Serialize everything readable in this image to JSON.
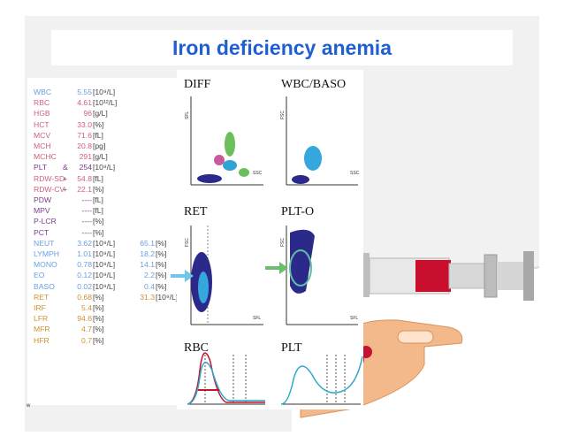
{
  "slide": {
    "title": "Iron deficiency anemia",
    "footer_mark": "w",
    "colors": {
      "title": "#1f5fd0",
      "red_param": "#d06080",
      "purple_param": "#7a3a8a",
      "blue_param": "#6aa0e0",
      "arrow_blue": "#6ec6ea",
      "arrow_green": "#6bbf6b"
    }
  },
  "lab_results": [
    {
      "name": "WBC",
      "value": "5.55",
      "flag": "",
      "unit": "[10⁹/L]",
      "pct": "",
      "unit2": "",
      "color": "#6aa0e0"
    },
    {
      "name": "RBC",
      "value": "4.61",
      "flag": "",
      "unit": "[10¹²/L]",
      "pct": "",
      "unit2": "",
      "color": "#d06080"
    },
    {
      "name": "HGB",
      "value": "96",
      "flag": "",
      "unit": "[g/L]",
      "pct": "",
      "unit2": "",
      "color": "#d06080"
    },
    {
      "name": "HCT",
      "value": "33.0",
      "flag": "",
      "unit": "[%]",
      "pct": "",
      "unit2": "",
      "color": "#d06080"
    },
    {
      "name": "MCV",
      "value": "71.6",
      "flag": "",
      "unit": "[fL]",
      "pct": "",
      "unit2": "",
      "color": "#d06080"
    },
    {
      "name": "MCH",
      "value": "20.8",
      "flag": "",
      "unit": "[pg]",
      "pct": "",
      "unit2": "",
      "color": "#d06080"
    },
    {
      "name": "MCHC",
      "value": "291",
      "flag": "",
      "unit": "[g/L]",
      "pct": "",
      "unit2": "",
      "color": "#d06080"
    },
    {
      "name": "PLT",
      "value": "254",
      "flag": "&",
      "unit": "[10⁹/L]",
      "pct": "",
      "unit2": "",
      "color": "#7a3a8a"
    },
    {
      "name": "RDW-SD",
      "value": "54.8",
      "flag": "+",
      "unit": "[fL]",
      "pct": "",
      "unit2": "",
      "color": "#d06080"
    },
    {
      "name": "RDW-CV",
      "value": "22.1",
      "flag": "+",
      "unit": "[%]",
      "pct": "",
      "unit2": "",
      "color": "#d06080"
    },
    {
      "name": "PDW",
      "value": "----",
      "flag": "",
      "unit": "[fL]",
      "pct": "",
      "unit2": "",
      "color": "#7a3a8a"
    },
    {
      "name": "MPV",
      "value": "----",
      "flag": "",
      "unit": "[fL]",
      "pct": "",
      "unit2": "",
      "color": "#7a3a8a"
    },
    {
      "name": "P-LCR",
      "value": "----",
      "flag": "",
      "unit": "[%]",
      "pct": "",
      "unit2": "",
      "color": "#7a3a8a"
    },
    {
      "name": "PCT",
      "value": "----",
      "flag": "",
      "unit": "[%]",
      "pct": "",
      "unit2": "",
      "color": "#7a3a8a"
    },
    {
      "name": "NEUT",
      "value": "3.62",
      "flag": "",
      "unit": "[10⁹/L]",
      "pct": "65.1",
      "unit2": "[%]",
      "color": "#6aa0e0"
    },
    {
      "name": "LYMPH",
      "value": "1.01",
      "flag": "",
      "unit": "[10⁹/L]",
      "pct": "18.2",
      "unit2": "[%]",
      "color": "#6aa0e0"
    },
    {
      "name": "MONO",
      "value": "0.78",
      "flag": "",
      "unit": "[10⁹/L]",
      "pct": "14.1",
      "unit2": "[%]",
      "color": "#6aa0e0"
    },
    {
      "name": "EO",
      "value": "0.12",
      "flag": "",
      "unit": "[10⁹/L]",
      "pct": "2.2",
      "unit2": "[%]",
      "color": "#6aa0e0"
    },
    {
      "name": "BASO",
      "value": "0.02",
      "flag": "",
      "unit": "[10⁹/L]",
      "pct": "0.4",
      "unit2": "[%]",
      "color": "#6aa0e0"
    },
    {
      "name": "RET",
      "value": "0.68",
      "flag": "",
      "unit": "[%]",
      "pct": "31.3",
      "unit2": "[10⁹/L]",
      "color": "#d09030"
    },
    {
      "name": "IRF",
      "value": "5.4",
      "flag": "",
      "unit": "[%]",
      "pct": "",
      "unit2": "",
      "color": "#d09030"
    },
    {
      "name": "LFR",
      "value": "94.6",
      "flag": "",
      "unit": "[%]",
      "pct": "",
      "unit2": "",
      "color": "#d09030"
    },
    {
      "name": "MFR",
      "value": "4.7",
      "flag": "",
      "unit": "[%]",
      "pct": "",
      "unit2": "",
      "color": "#d09030"
    },
    {
      "name": "HFR",
      "value": "0.7",
      "flag": "",
      "unit": "[%]",
      "pct": "",
      "unit2": "",
      "color": "#d09030"
    }
  ],
  "graphs": {
    "diff": {
      "title": "DIFF",
      "ylabel": "SFL",
      "xlabel": "SSC"
    },
    "wbc_baso": {
      "title": "WBC/BASO",
      "ylabel": "FSC",
      "xlabel": "SSC"
    },
    "ret": {
      "title": "RET",
      "ylabel": "FSC",
      "xlabel": "SFL"
    },
    "plt_o": {
      "title": "PLT-O",
      "ylabel": "FSC",
      "xlabel": "SFL"
    },
    "rbc": {
      "title": "RBC"
    },
    "plt": {
      "title": "PLT"
    }
  }
}
